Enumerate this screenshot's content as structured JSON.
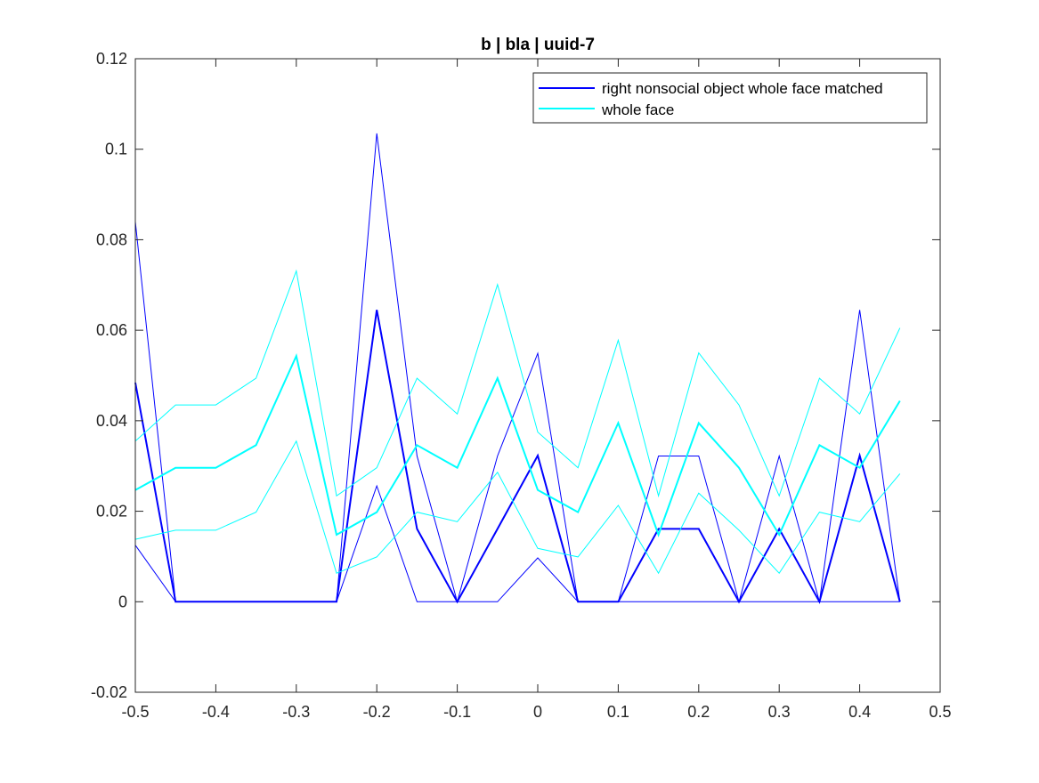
{
  "chart_data": {
    "type": "line",
    "title": "b | bla | uuid-7",
    "xlabel": "",
    "ylabel": "",
    "xlim": [
      -0.5,
      0.5
    ],
    "ylim": [
      -0.02,
      0.12
    ],
    "xticks": [
      -0.5,
      -0.4,
      -0.3,
      -0.2,
      -0.1,
      0,
      0.1,
      0.2,
      0.3,
      0.4,
      0.5
    ],
    "xtick_labels": [
      "-0.5",
      "-0.4",
      "-0.3",
      "-0.2",
      "-0.1",
      "0",
      "0.1",
      "0.2",
      "0.3",
      "0.4",
      "0.5"
    ],
    "yticks": [
      -0.02,
      0,
      0.02,
      0.04,
      0.06,
      0.08,
      0.1,
      0.12
    ],
    "ytick_labels": [
      "-0.02",
      "0",
      "0.02",
      "0.04",
      "0.06",
      "0.08",
      "0.1",
      "0.12"
    ],
    "grid": false,
    "legend_position": "top-right",
    "x": [
      -0.5,
      -0.45,
      -0.4,
      -0.35,
      -0.3,
      -0.25,
      -0.2,
      -0.15,
      -0.1,
      -0.05,
      0,
      0.05,
      0.1,
      0.15,
      0.2,
      0.25,
      0.3,
      0.35,
      0.4,
      0.45
    ],
    "series": [
      {
        "name": "right nonsocial object whole face matched",
        "color": "#0000ff",
        "values": [
          0.0484,
          0,
          0,
          0,
          0,
          0,
          0.0645,
          0.0161,
          0,
          0.0161,
          0.0323,
          0,
          0,
          0.0161,
          0.0161,
          0,
          0.0161,
          0,
          0.0323,
          0
        ],
        "upper": [
          0.084,
          0,
          0,
          0,
          0,
          0,
          0.1035,
          0.0322,
          0,
          0.0322,
          0.0549,
          0,
          0,
          0.0322,
          0.0322,
          0,
          0.0322,
          0,
          0.0645,
          0
        ],
        "lower": [
          0.0125,
          0,
          0,
          0,
          0,
          0,
          0.0256,
          0,
          0,
          0,
          0.0097,
          0,
          0,
          0,
          0,
          0,
          0,
          0,
          0,
          0
        ]
      },
      {
        "name": "whole face",
        "color": "#00ffff",
        "values": [
          0.0247,
          0.0296,
          0.0296,
          0.0346,
          0.0543,
          0.0148,
          0.0198,
          0.0346,
          0.0296,
          0.0494,
          0.0247,
          0.0198,
          0.0395,
          0.0148,
          0.0395,
          0.0296,
          0.0148,
          0.0346,
          0.0296,
          0.0444
        ],
        "upper": [
          0.0355,
          0.0435,
          0.0435,
          0.0494,
          0.0731,
          0.0234,
          0.0296,
          0.0494,
          0.0415,
          0.0701,
          0.0375,
          0.0296,
          0.0578,
          0.0234,
          0.055,
          0.0435,
          0.0234,
          0.0494,
          0.0415,
          0.0605
        ],
        "lower": [
          0.0138,
          0.0158,
          0.0158,
          0.0198,
          0.0355,
          0.0063,
          0.0099,
          0.0198,
          0.0177,
          0.0286,
          0.0118,
          0.0099,
          0.0213,
          0.0063,
          0.024,
          0.0158,
          0.0063,
          0.0198,
          0.0177,
          0.0283
        ]
      }
    ]
  }
}
